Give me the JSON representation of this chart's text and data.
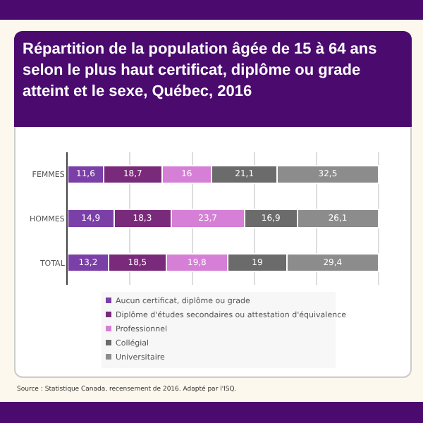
{
  "chart_data": {
    "type": "bar",
    "orientation": "horizontal",
    "stacked": true,
    "title": "Répartition de la population âgée de 15 à 64 ans selon le plus haut certificat, diplôme ou grade atteint et le sexe, Québec, 2016",
    "categories": [
      "FEMMES",
      "HOMMES",
      "TOTAL"
    ],
    "series": [
      {
        "name": "Aucun certificat, diplôme ou grade",
        "color": "#7b3fa8",
        "values": [
          11.6,
          14.9,
          13.2
        ],
        "value_labels": [
          "11,6",
          "14,9",
          "13,2"
        ]
      },
      {
        "name": "Diplôme d'études secondaires ou attestation d'équivalence",
        "color": "#7a2a7a",
        "values": [
          18.7,
          18.3,
          18.5
        ],
        "value_labels": [
          "18,7",
          "18,3",
          "18,5"
        ]
      },
      {
        "name": "Professionnel",
        "color": "#d67fd6",
        "values": [
          16,
          23.7,
          19.8
        ],
        "value_labels": [
          "16",
          "23,7",
          "19,8"
        ]
      },
      {
        "name": "Collégial",
        "color": "#6b6b6b",
        "values": [
          21.1,
          16.9,
          19
        ],
        "value_labels": [
          "21,1",
          "16,9",
          "19"
        ]
      },
      {
        "name": "Universitaire",
        "color": "#8c8c8c",
        "values": [
          32.5,
          26.1,
          29.4
        ],
        "value_labels": [
          "32,5",
          "26,1",
          "29,4"
        ]
      }
    ],
    "grid": "x",
    "legend": "bottom",
    "tick_labels": "y",
    "annotations": [
      "Source : Statistique Canada, recensement de 2016. Adapté par l'ISQ."
    ]
  }
}
